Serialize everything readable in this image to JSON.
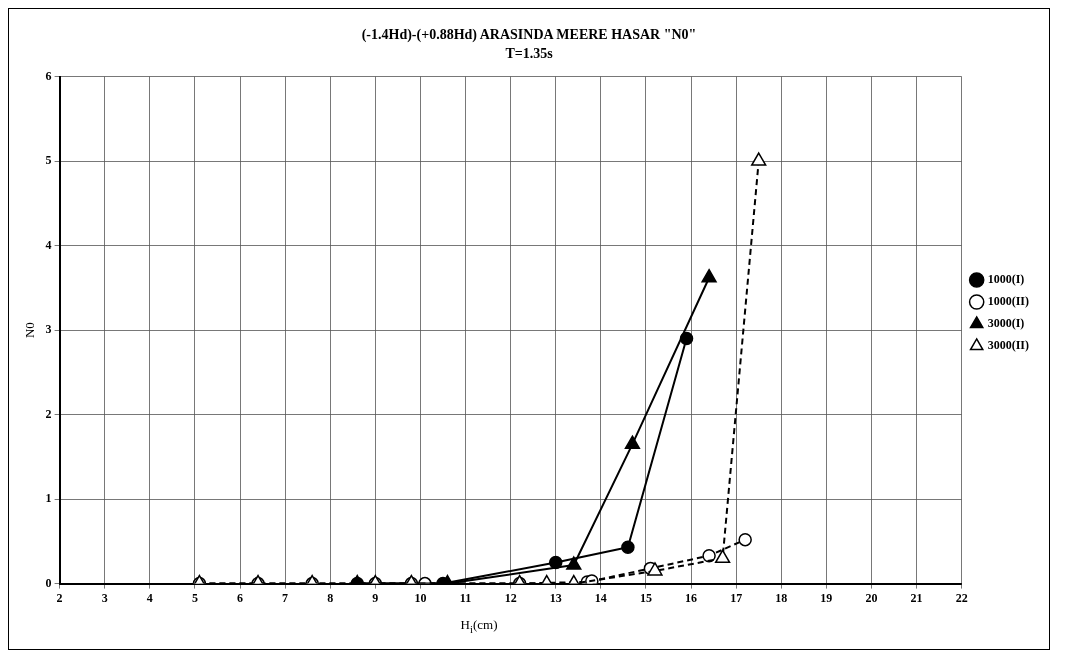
{
  "chart_data": {
    "type": "line",
    "title": "(-1.4Hd)-(+0.88Hd) ARASINDA MEERE HASAR \"N0\"",
    "subtitle": "T=1.35s",
    "xlabel": "H$_{i}$(cm)",
    "ylabel": "N0",
    "xlim": [
      2,
      22
    ],
    "xticks": [
      2,
      3,
      4,
      5,
      6,
      7,
      8,
      9,
      10,
      11,
      12,
      13,
      14,
      15,
      16,
      17,
      18,
      19,
      20,
      21,
      22
    ],
    "ylim": [
      0,
      6
    ],
    "yticks": [
      0,
      1,
      2,
      3,
      4,
      5,
      6
    ],
    "grid": true,
    "legend": "right",
    "series": [
      {
        "name": "1000(I)",
        "color": "#000000",
        "marker": "circle",
        "line_style": "solid",
        "x": [
          8.6,
          10.5,
          13.0,
          14.6,
          15.9
        ],
        "values": [
          0,
          0,
          0.25,
          0.43,
          2.9
        ]
      },
      {
        "name": "1000(II)",
        "color": "#000000",
        "marker": "circle",
        "line_style": "dashed",
        "x": [
          5.1,
          6.4,
          7.6,
          9.0,
          9.8,
          10.1,
          12.2,
          13.7,
          13.8,
          15.1,
          16.4,
          17.2
        ],
        "values": [
          0,
          0,
          0,
          0,
          0,
          0,
          0,
          0.02,
          0.03,
          0.18,
          0.33,
          0.52
        ]
      },
      {
        "name": "3000(I)",
        "color": "#000000",
        "marker": "triangle",
        "line_style": "solid",
        "x": [
          8.6,
          10.6,
          13.4,
          14.7,
          16.4
        ],
        "values": [
          0,
          0,
          0.22,
          1.65,
          3.62
        ]
      },
      {
        "name": "3000(II)",
        "color": "#000000",
        "marker": "triangle",
        "line_style": "dashed",
        "x": [
          5.1,
          6.4,
          7.6,
          9.0,
          9.8,
          12.2,
          12.8,
          13.4,
          15.2,
          16.7,
          17.5
        ],
        "values": [
          0,
          0,
          0,
          0,
          0,
          0,
          0,
          0,
          0.15,
          0.3,
          5.0
        ]
      }
    ]
  }
}
